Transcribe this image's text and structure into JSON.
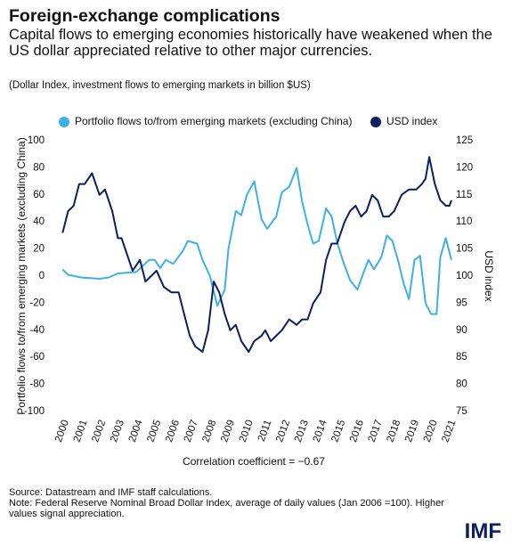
{
  "chart_data": {
    "type": "line",
    "title": "Foreign-exchange complications",
    "subtitle": "Capital flows to emerging economies historically have weakened when the US dollar appreciated relative to other major currencies.",
    "note_top": "(Dollar Index, investment flows to emerging markets in billion $US)",
    "ylabel": "Portfolio flows to/from emerging markets (excluding China)",
    "y2label": "USD index",
    "annotation": "Correlation coefficient = −0.67",
    "source": "Source: Datastream and IMF staff calculations.",
    "note": "Note: Federal Reserve Nominal Broad Dollar Index, average of daily values (Jan 2006 =100). Higher values signal appreciation.",
    "logo": "IMF",
    "legend": "top",
    "grid": false,
    "xlim": [
      1999.6,
      2021.25
    ],
    "xticks": [
      2000,
      2001,
      2002,
      2003,
      2004,
      2005,
      2006,
      2007,
      2008,
      2009,
      2010,
      2011,
      2012,
      2013,
      2014,
      2015,
      2016,
      2017,
      2018,
      2019,
      2020,
      2021
    ],
    "ylim": [
      -100,
      100
    ],
    "yticks": [
      -100,
      -80,
      -60,
      -40,
      -20,
      0,
      20,
      40,
      60,
      80,
      100
    ],
    "y2lim": [
      75,
      125
    ],
    "y2ticks": [
      75,
      80,
      85,
      90,
      95,
      100,
      105,
      110,
      115,
      120,
      125
    ],
    "series": [
      {
        "name": "Portfolio flows to/from emerging markets (excluding China)",
        "color": "#3db1e6",
        "x": [
          2000,
          2000.3,
          2001,
          2002,
          2002.5,
          2003,
          2004,
          2004.7,
          2005,
          2005.3,
          2005.6,
          2006,
          2006.5,
          2006.8,
          2007.3,
          2007.6,
          2008,
          2008.4,
          2008.8,
          2009,
          2009.4,
          2009.7,
          2010,
          2010.4,
          2010.8,
          2011.1,
          2011.6,
          2011.9,
          2012.3,
          2012.7,
          2013,
          2013.3,
          2013.6,
          2013.9,
          2014.3,
          2014.6,
          2014.9,
          2015.2,
          2015.6,
          2016,
          2016.4,
          2016.6,
          2016.9,
          2017.3,
          2017.6,
          2017.9,
          2018.2,
          2018.5,
          2018.8,
          2019.1,
          2019.4,
          2019.7,
          2020,
          2020.3,
          2020.5,
          2020.8,
          2021.1
        ],
        "values": [
          5,
          1,
          -1,
          -2,
          -1,
          2,
          3,
          12,
          12,
          6,
          12,
          9,
          18,
          26,
          24,
          12,
          0,
          -22,
          -10,
          20,
          48,
          45,
          60,
          70,
          42,
          35,
          44,
          62,
          66,
          80,
          55,
          38,
          24,
          26,
          50,
          44,
          25,
          12,
          -3,
          -10,
          5,
          12,
          5,
          14,
          30,
          26,
          12,
          -5,
          -17,
          12,
          15,
          -20,
          -28,
          -28,
          14,
          28,
          12
        ]
      },
      {
        "name": "USD index",
        "color": "#0c1f5e",
        "axis": "y2",
        "x": [
          2000,
          2000.3,
          2000.6,
          2000.9,
          2001.2,
          2001.6,
          2002,
          2002.3,
          2002.7,
          2003,
          2003.2,
          2003.5,
          2003.8,
          2004.2,
          2004.5,
          2004.8,
          2005.1,
          2005.5,
          2005.9,
          2006.3,
          2006.6,
          2006.9,
          2007.2,
          2007.6,
          2007.9,
          2008.2,
          2008.5,
          2008.8,
          2009.1,
          2009.4,
          2009.7,
          2010.1,
          2010.4,
          2010.8,
          2011,
          2011.3,
          2011.6,
          2011.9,
          2012.3,
          2012.7,
          2013,
          2013.3,
          2013.6,
          2014,
          2014.3,
          2014.6,
          2014.9,
          2015.3,
          2015.6,
          2015.9,
          2016.2,
          2016.5,
          2016.8,
          2017.1,
          2017.4,
          2017.7,
          2018,
          2018.4,
          2018.8,
          2019.2,
          2019.5,
          2019.7,
          2019.9,
          2020.2,
          2020.5,
          2020.8,
          2021,
          2021.1
        ],
        "values": [
          108,
          112,
          113,
          117,
          117,
          119,
          115,
          116,
          112,
          107,
          107,
          104,
          101,
          103,
          99,
          100,
          101,
          98,
          97,
          97,
          93,
          89,
          87,
          86,
          90,
          99,
          97,
          93,
          90,
          91,
          88,
          86,
          88,
          89,
          90,
          88,
          89,
          90,
          92,
          91,
          92,
          92,
          95,
          97,
          103,
          106,
          106,
          110,
          112,
          113,
          111,
          112,
          115,
          114,
          111,
          111,
          112,
          115,
          116,
          116,
          117,
          118,
          122,
          117,
          114,
          113,
          113,
          114
        ]
      }
    ]
  }
}
